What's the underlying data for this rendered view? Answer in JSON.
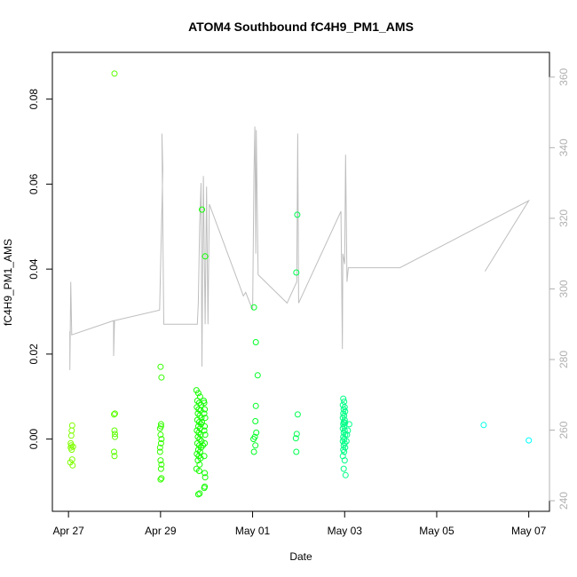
{
  "chart_data": {
    "type": "scatter",
    "title": "ATOM4 Southbound fC4H9_PM1_AMS",
    "xlabel": "Date",
    "ylabel": "fC4H9_PM1_AMS",
    "x_ticks": [
      "Apr 27",
      "Apr 29",
      "May 01",
      "May 03",
      "May 05",
      "May 07"
    ],
    "x_tick_days": [
      0,
      2,
      4,
      6,
      8,
      10
    ],
    "xlim_days": [
      -0.35,
      10.45
    ],
    "ylim": [
      -0.017,
      0.091
    ],
    "y_ticks": [
      0.0,
      0.02,
      0.04,
      0.06,
      0.08
    ],
    "y_tick_labels": [
      "0.00",
      "0.02",
      "0.04",
      "0.06",
      "0.08"
    ],
    "y2lim": [
      237,
      367
    ],
    "y2_ticks": [
      240,
      260,
      280,
      300,
      320,
      340,
      360
    ],
    "grid": false,
    "series": [
      {
        "kind": "scatter",
        "axis": "left",
        "color_by_time": true,
        "colors": [
          "#80ff00",
          "#00ff00",
          "#00ffaa",
          "#00ffff"
        ],
        "points": [
          [
            0.05,
            -0.002
          ],
          [
            0.06,
            -0.0015
          ],
          [
            0.07,
            0.002
          ],
          [
            0.08,
            0.0032
          ],
          [
            0.04,
            -0.0055
          ],
          [
            0.09,
            -0.0062
          ],
          [
            0.1,
            -0.0018
          ],
          [
            0.06,
            0.0008
          ],
          [
            0.08,
            -0.0048
          ],
          [
            0.05,
            -0.001
          ],
          [
            0.07,
            -0.0025
          ],
          [
            1.0,
            0.086
          ],
          [
            1.01,
            0.006
          ],
          [
            0.99,
            0.0058
          ],
          [
            1.0,
            0.002
          ],
          [
            1.01,
            0.0012
          ],
          [
            0.99,
            -0.003
          ],
          [
            1.0,
            -0.004
          ],
          [
            1.01,
            0.0005
          ],
          [
            2.0,
            0.017
          ],
          [
            2.02,
            0.0145
          ],
          [
            2.01,
            0.0035
          ],
          [
            1.99,
            0.0025
          ],
          [
            2.0,
            0.001
          ],
          [
            2.02,
            0.0
          ],
          [
            2.01,
            -0.001
          ],
          [
            1.99,
            -0.002
          ],
          [
            2.0,
            -0.005
          ],
          [
            2.02,
            -0.006
          ],
          [
            2.01,
            -0.007
          ],
          [
            2.0,
            -0.0095
          ],
          [
            2.02,
            -0.0092
          ],
          [
            1.99,
            -0.003
          ],
          [
            2.01,
            0.003
          ],
          [
            2.82,
            -0.013
          ],
          [
            2.85,
            -0.0128
          ],
          [
            2.78,
            0.0115
          ],
          [
            2.82,
            0.0108
          ],
          [
            2.86,
            0.01
          ],
          [
            2.8,
            0.009
          ],
          [
            2.84,
            0.0085
          ],
          [
            2.88,
            0.008
          ],
          [
            2.79,
            0.0075
          ],
          [
            2.83,
            0.007
          ],
          [
            2.87,
            0.0068
          ],
          [
            2.81,
            0.006
          ],
          [
            2.85,
            0.0055
          ],
          [
            2.89,
            0.005
          ],
          [
            2.8,
            0.0045
          ],
          [
            2.84,
            0.004
          ],
          [
            2.88,
            0.0035
          ],
          [
            2.82,
            0.003
          ],
          [
            2.86,
            0.0025
          ],
          [
            2.79,
            0.002
          ],
          [
            2.83,
            0.0015
          ],
          [
            2.87,
            0.001
          ],
          [
            2.81,
            0.0005
          ],
          [
            2.85,
            0.0
          ],
          [
            2.89,
            -0.0005
          ],
          [
            2.8,
            -0.001
          ],
          [
            2.84,
            -0.0015
          ],
          [
            2.88,
            -0.002
          ],
          [
            2.82,
            -0.0025
          ],
          [
            2.86,
            -0.003
          ],
          [
            2.79,
            -0.0035
          ],
          [
            2.83,
            -0.004
          ],
          [
            2.87,
            -0.0045
          ],
          [
            2.81,
            -0.005
          ],
          [
            2.85,
            -0.006
          ],
          [
            2.78,
            -0.007
          ],
          [
            2.84,
            -0.0075
          ],
          [
            2.9,
            0.004
          ],
          [
            2.92,
            -0.0015
          ],
          [
            2.9,
            0.054
          ],
          [
            2.97,
            0.043
          ],
          [
            2.95,
            0.0085
          ],
          [
            2.96,
            0.007
          ],
          [
            2.95,
            0.006
          ],
          [
            2.97,
            0.005
          ],
          [
            2.96,
            0.003
          ],
          [
            2.95,
            0.002
          ],
          [
            2.97,
            0.001
          ],
          [
            2.96,
            -0.001
          ],
          [
            2.95,
            -0.004
          ],
          [
            2.96,
            -0.008
          ],
          [
            2.97,
            -0.009
          ],
          [
            2.95,
            -0.0115
          ],
          [
            2.96,
            -0.0112
          ],
          [
            2.94,
            0.009
          ],
          [
            4.03,
            0.031
          ],
          [
            4.07,
            0.0228
          ],
          [
            4.11,
            0.015
          ],
          [
            4.07,
            0.0078
          ],
          [
            4.06,
            0.0042
          ],
          [
            4.08,
            0.0015
          ],
          [
            4.05,
            0.0005
          ],
          [
            4.02,
            0.0
          ],
          [
            4.06,
            -0.0015
          ],
          [
            4.03,
            -0.003
          ],
          [
            4.97,
            0.0528
          ],
          [
            4.95,
            0.0392
          ],
          [
            4.98,
            0.0058
          ],
          [
            4.96,
            0.0012
          ],
          [
            4.94,
            0.0002
          ],
          [
            4.95,
            -0.003
          ],
          [
            5.97,
            0.0095
          ],
          [
            5.99,
            0.0088
          ],
          [
            5.96,
            0.008
          ],
          [
            6.0,
            0.0075
          ],
          [
            5.98,
            0.007
          ],
          [
            6.01,
            0.0065
          ],
          [
            5.97,
            0.006
          ],
          [
            5.99,
            0.0055
          ],
          [
            5.96,
            0.005
          ],
          [
            6.0,
            0.0045
          ],
          [
            5.98,
            0.004
          ],
          [
            6.01,
            0.0038
          ],
          [
            5.97,
            0.0035
          ],
          [
            5.99,
            0.003
          ],
          [
            5.96,
            0.0025
          ],
          [
            6.0,
            0.002
          ],
          [
            5.98,
            0.0015
          ],
          [
            6.01,
            0.001
          ],
          [
            5.97,
            0.0005
          ],
          [
            5.99,
            0.0
          ],
          [
            5.96,
            -0.0005
          ],
          [
            6.0,
            -0.001
          ],
          [
            5.98,
            -0.0015
          ],
          [
            6.01,
            -0.002
          ],
          [
            5.97,
            -0.0025
          ],
          [
            5.99,
            -0.003
          ],
          [
            5.96,
            -0.004
          ],
          [
            6.0,
            -0.005
          ],
          [
            5.98,
            -0.007
          ],
          [
            6.02,
            -0.0085
          ],
          [
            6.1,
            0.0035
          ],
          [
            6.07,
            0.002
          ],
          [
            6.05,
            0.001
          ],
          [
            6.04,
            -0.0005
          ],
          [
            9.02,
            0.0033
          ],
          [
            10.0,
            -0.0003
          ]
        ]
      },
      {
        "kind": "line",
        "axis": "right",
        "color": "#bebebe",
        "points": [
          [
            0.03,
            288
          ],
          [
            0.03,
            277
          ],
          [
            0.05,
            302
          ],
          [
            0.07,
            287
          ],
          [
            0.98,
            291
          ],
          [
            0.98,
            281
          ],
          [
            1.0,
            291
          ],
          [
            1.98,
            294
          ],
          [
            2.05,
            334
          ],
          [
            2.03,
            344
          ],
          [
            2.07,
            290
          ],
          [
            2.8,
            290
          ],
          [
            2.82,
            296
          ],
          [
            2.85,
            318
          ],
          [
            2.88,
            330
          ],
          [
            2.9,
            278
          ],
          [
            2.93,
            332
          ],
          [
            2.97,
            290
          ],
          [
            3.0,
            329
          ],
          [
            3.03,
            290
          ],
          [
            3.06,
            324
          ],
          [
            3.8,
            298
          ],
          [
            3.85,
            299
          ],
          [
            4.0,
            294
          ],
          [
            4.03,
            333
          ],
          [
            4.05,
            346
          ],
          [
            4.07,
            310
          ],
          [
            4.08,
            345
          ],
          [
            4.12,
            304
          ],
          [
            4.75,
            296
          ],
          [
            4.96,
            302
          ],
          [
            4.98,
            344
          ],
          [
            5.0,
            296
          ],
          [
            5.92,
            322
          ],
          [
            5.95,
            283
          ],
          [
            5.96,
            310
          ],
          [
            6.0,
            307
          ],
          [
            6.02,
            338
          ],
          [
            6.05,
            302
          ],
          [
            6.08,
            306
          ],
          [
            7.2,
            306
          ],
          [
            10.0,
            325
          ],
          [
            9.05,
            305
          ]
        ]
      }
    ]
  }
}
